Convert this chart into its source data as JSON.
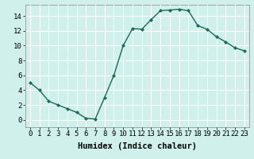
{
  "x": [
    0,
    1,
    2,
    3,
    4,
    5,
    6,
    7,
    8,
    9,
    10,
    11,
    12,
    13,
    14,
    15,
    16,
    17,
    18,
    19,
    20,
    21,
    22,
    23
  ],
  "y": [
    5,
    4,
    2.5,
    2,
    1.5,
    1,
    0.2,
    0.1,
    3,
    6,
    10,
    12.3,
    12.2,
    13.5,
    14.7,
    14.8,
    14.9,
    14.7,
    12.7,
    12.2,
    11.2,
    10.5,
    9.7,
    9.3
  ],
  "line_color": "#1a6b5a",
  "marker": "D",
  "marker_size": 2,
  "bg_color": "#cff0eb",
  "grid_major_color": "#ffffff",
  "grid_minor_color": "#f0c8c8",
  "xlabel": "Humidex (Indice chaleur)",
  "xlabel_fontsize": 7.5,
  "xlim": [
    -0.5,
    23.5
  ],
  "ylim": [
    -1,
    15.5
  ],
  "yticks": [
    0,
    2,
    4,
    6,
    8,
    10,
    12,
    14
  ],
  "xticks": [
    0,
    1,
    2,
    3,
    4,
    5,
    6,
    7,
    8,
    9,
    10,
    11,
    12,
    13,
    14,
    15,
    16,
    17,
    18,
    19,
    20,
    21,
    22,
    23
  ],
  "tick_fontsize": 6.5
}
